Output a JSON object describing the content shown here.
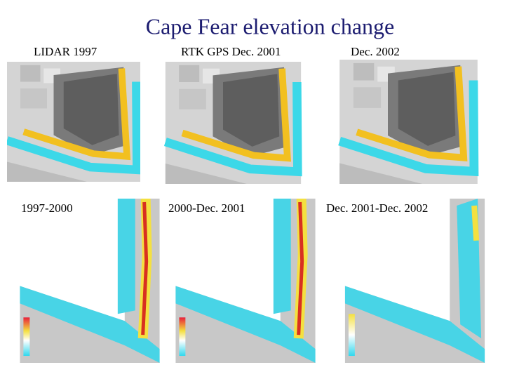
{
  "title": "Cape Fear elevation change",
  "panels": [
    {
      "label": "LIDAR 1997"
    },
    {
      "label": "RTK GPS Dec. 2001"
    },
    {
      "label": "Dec. 2002"
    },
    {
      "label": "1997-2000"
    },
    {
      "label": "2000-Dec. 2001"
    },
    {
      "label": "Dec. 2001-Dec. 2002"
    }
  ]
}
